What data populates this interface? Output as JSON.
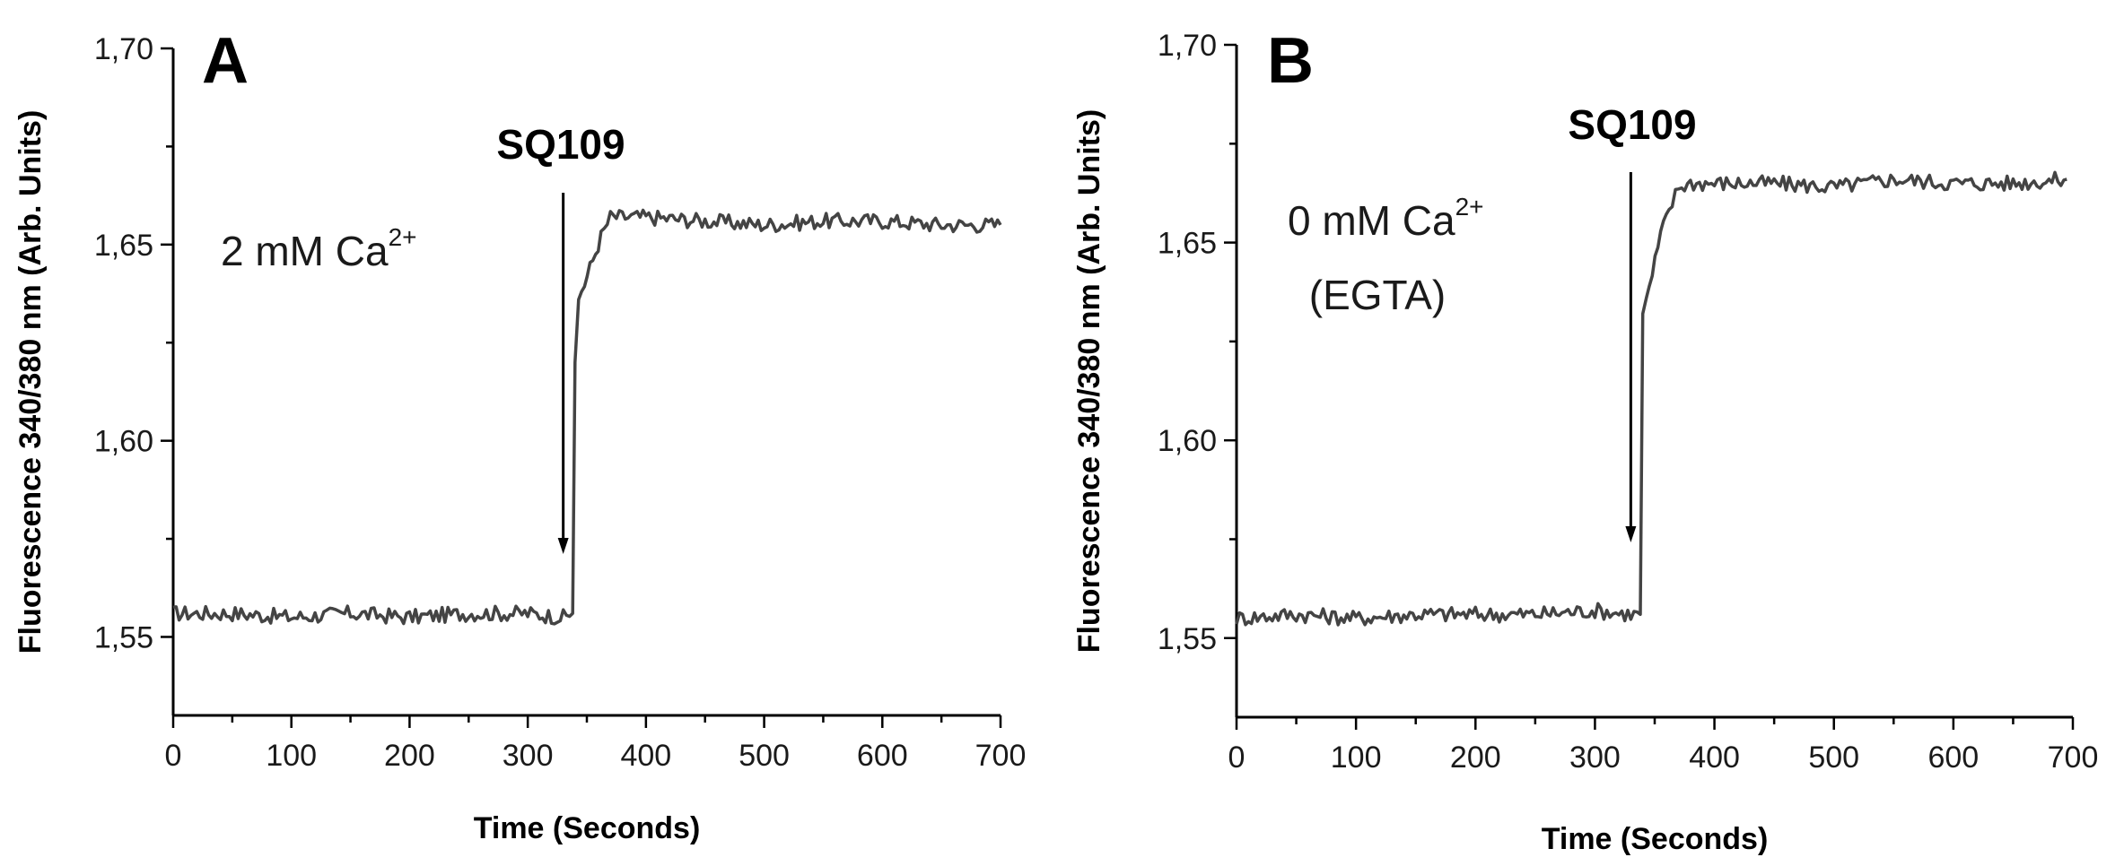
{
  "chart_data": [
    {
      "type": "line",
      "panel_label": "A",
      "xlabel": "Time (Seconds)",
      "ylabel": "Fluorescence 340/380 nm (Arb. Units)",
      "xlim": [
        0,
        700
      ],
      "ylim": [
        1.53,
        1.7
      ],
      "xticks": [
        0,
        100,
        200,
        300,
        400,
        500,
        600,
        700
      ],
      "xtick_labels": [
        "0",
        "100",
        "200",
        "300",
        "400",
        "500",
        "600",
        "700"
      ],
      "yticks": [
        1.55,
        1.6,
        1.65,
        1.7
      ],
      "ytick_labels": [
        "1,55",
        "1,60",
        "1,65",
        "1,70"
      ],
      "grid": false,
      "series_color": "#444444",
      "annotations": {
        "arrow_label": "SQ109",
        "arrow_x": 330,
        "condition_text": "2 mM Ca",
        "condition_superscript": "2+",
        "condition_line2": ""
      },
      "x": [
        0,
        50,
        100,
        150,
        200,
        250,
        300,
        330,
        338,
        340,
        343,
        348,
        355,
        362,
        370,
        380,
        400,
        450,
        500,
        550,
        600,
        650,
        700
      ],
      "y": [
        1.556,
        1.556,
        1.555,
        1.556,
        1.555,
        1.556,
        1.556,
        1.555,
        1.556,
        1.62,
        1.636,
        1.64,
        1.646,
        1.652,
        1.657,
        1.657,
        1.657,
        1.656,
        1.655,
        1.656,
        1.656,
        1.655,
        1.655
      ]
    },
    {
      "type": "line",
      "panel_label": "B",
      "xlabel": "Time (Seconds)",
      "ylabel": "Fluorescence 340/380 nm (Arb. Units)",
      "xlim": [
        0,
        700
      ],
      "ylim": [
        1.53,
        1.7
      ],
      "xticks": [
        0,
        100,
        200,
        300,
        400,
        500,
        600,
        700
      ],
      "xtick_labels": [
        "0",
        "100",
        "200",
        "300",
        "400",
        "500",
        "600",
        "700"
      ],
      "yticks": [
        1.55,
        1.6,
        1.65,
        1.7
      ],
      "ytick_labels": [
        "1,55",
        "1,60",
        "1,65",
        "1,70"
      ],
      "grid": false,
      "series_color": "#444444",
      "annotations": {
        "arrow_label": "SQ109",
        "arrow_x": 330,
        "condition_text": "0 mM Ca",
        "condition_superscript": "2+",
        "condition_line2": "(EGTA)"
      },
      "x": [
        0,
        50,
        100,
        150,
        200,
        250,
        300,
        330,
        338,
        340,
        343,
        348,
        355,
        362,
        370,
        380,
        400,
        450,
        500,
        550,
        600,
        650,
        695
      ],
      "y": [
        1.555,
        1.556,
        1.555,
        1.556,
        1.556,
        1.556,
        1.557,
        1.556,
        1.556,
        1.632,
        1.636,
        1.642,
        1.652,
        1.658,
        1.664,
        1.665,
        1.665,
        1.665,
        1.664,
        1.666,
        1.665,
        1.665,
        1.666
      ]
    }
  ]
}
